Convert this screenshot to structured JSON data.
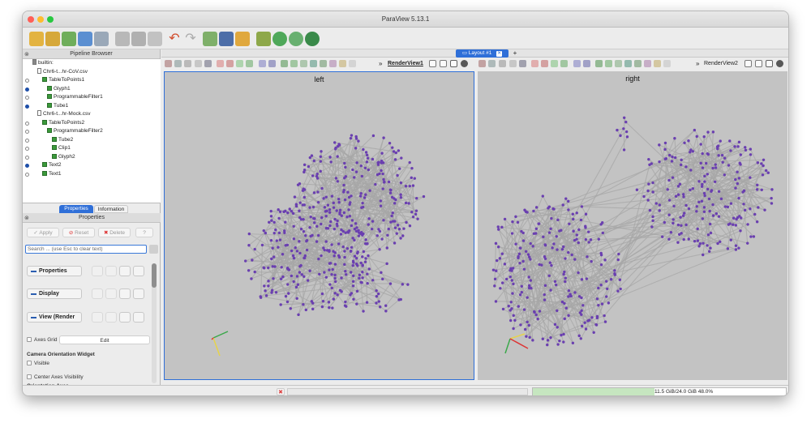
{
  "window": {
    "title": "ParaView 5.13.1"
  },
  "pipeline_browser": {
    "title": "Pipeline Browser",
    "items": [
      {
        "label": "builtin:",
        "kind": "server",
        "visible": null
      },
      {
        "label": "Chr6-t...hr-CoV.csv",
        "kind": "file",
        "visible": null
      },
      {
        "label": "TableToPoints1",
        "kind": "filter",
        "visible": false
      },
      {
        "label": "Glyph1",
        "kind": "filter",
        "visible": true
      },
      {
        "label": "ProgrammableFilter1",
        "kind": "filter",
        "visible": false
      },
      {
        "label": "Tube1",
        "kind": "filter",
        "visible": true
      },
      {
        "label": "Chr6-t...hr-Mock.csv",
        "kind": "file",
        "visible": null
      },
      {
        "label": "TableToPoints2",
        "kind": "filter",
        "visible": false
      },
      {
        "label": "ProgrammableFilter2",
        "kind": "filter",
        "visible": false
      },
      {
        "label": "Tube2",
        "kind": "filter",
        "visible": false
      },
      {
        "label": "Clip1",
        "kind": "filter",
        "visible": false
      },
      {
        "label": "Glyph2",
        "kind": "filter",
        "visible": false
      },
      {
        "label": "Text2",
        "kind": "filter",
        "visible": true
      },
      {
        "label": "Text1",
        "kind": "filter",
        "visible": false
      }
    ]
  },
  "panel_tabs": {
    "properties": "Properties",
    "information": "Information"
  },
  "properties_panel": {
    "title": "Properties",
    "apply": "Apply",
    "reset": "Reset",
    "delete": "Delete",
    "help": "?",
    "search_placeholder": "Search ... (use Esc to clear text)",
    "sections": {
      "properties": "Properties",
      "display": "Display",
      "view": "View (Render"
    },
    "axes_grid": "Axes Grid",
    "edit": "Edit",
    "camera_widget": "Camera Orientation Widget",
    "visible": "Visible",
    "center_axes": "Center Axes Visibility",
    "orientation_axes": "Orientation Axes"
  },
  "layout": {
    "tab_label": "Layout #1",
    "add": "+"
  },
  "views": {
    "left": {
      "toolbar_label": "RenderView1",
      "title": "left"
    },
    "right": {
      "toolbar_label": "RenderView2",
      "title": "right"
    }
  },
  "status": {
    "memory": "11.5 GiB/24.0 GiB 48.0%",
    "memory_fraction": 0.48
  },
  "colors": {
    "accent": "#2f6fd8",
    "points": "#6a3fb0",
    "lines": "#a7a7a7",
    "viewport": "#c3c3c3"
  }
}
